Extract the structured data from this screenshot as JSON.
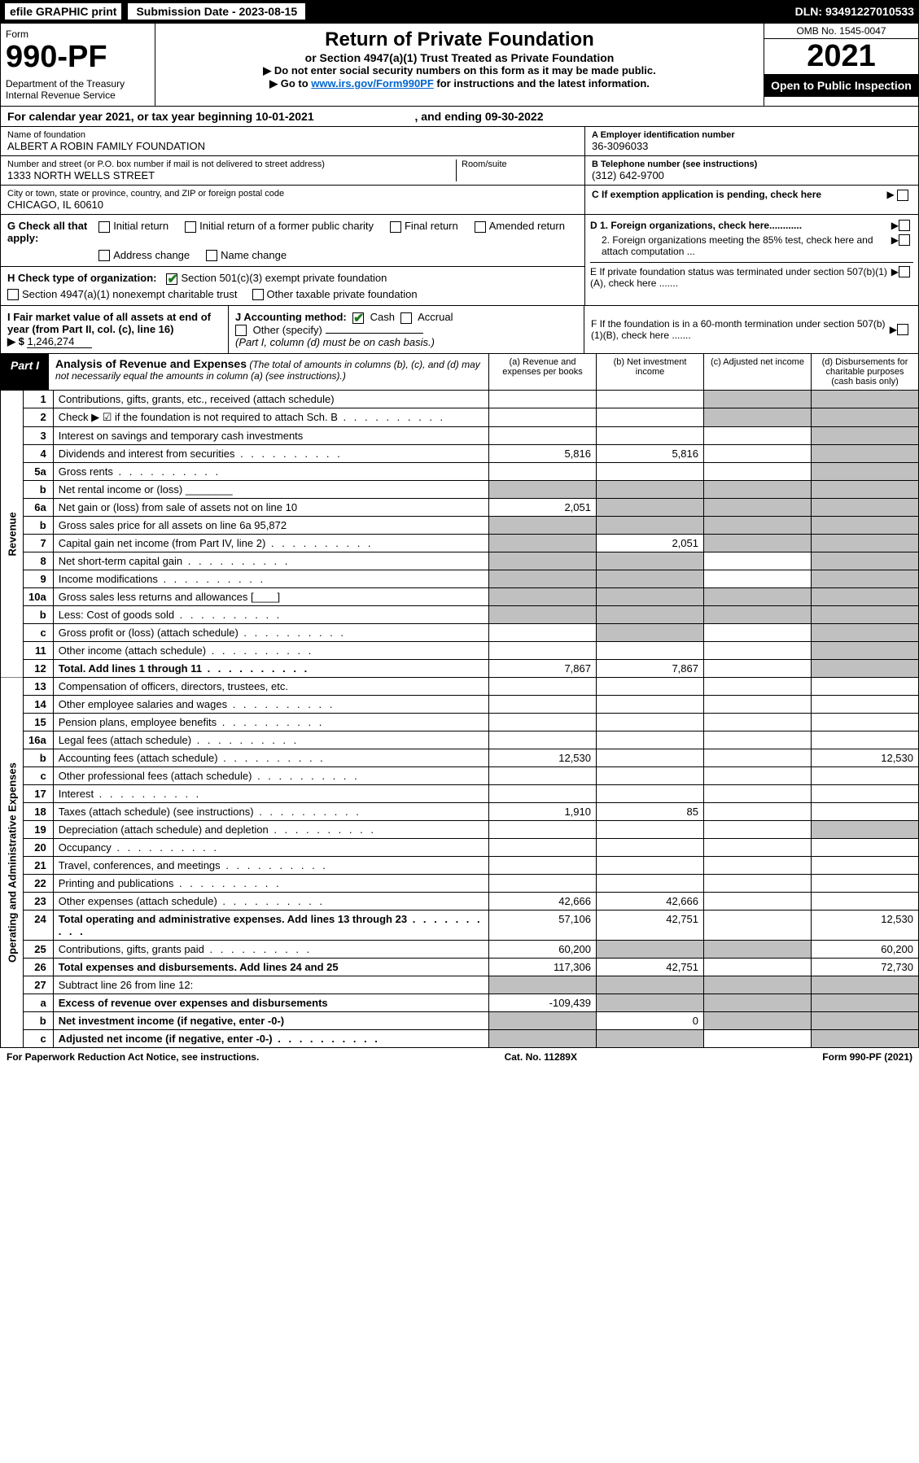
{
  "topbar": {
    "efile": "efile GRAPHIC print",
    "sub_date_label": "Submission Date - 2023-08-15",
    "dln": "DLN: 93491227010533"
  },
  "header": {
    "form_word": "Form",
    "form_no": "990-PF",
    "dept": "Department of the Treasury\nInternal Revenue Service",
    "title": "Return of Private Foundation",
    "subtitle": "or Section 4947(a)(1) Trust Treated as Private Foundation",
    "note1": "▶ Do not enter social security numbers on this form as it may be made public.",
    "note2_pre": "▶ Go to ",
    "note2_link": "www.irs.gov/Form990PF",
    "note2_post": " for instructions and the latest information.",
    "omb": "OMB No. 1545-0047",
    "year": "2021",
    "open": "Open to Public Inspection"
  },
  "cal_year": {
    "text_pre": "For calendar year 2021, or tax year beginning ",
    "begin": "10-01-2021",
    "mid": " , and ending ",
    "end": "09-30-2022"
  },
  "foundation": {
    "name_label": "Name of foundation",
    "name": "ALBERT A ROBIN FAMILY FOUNDATION",
    "street_label": "Number and street (or P.O. box number if mail is not delivered to street address)",
    "street": "1333 NORTH WELLS STREET",
    "room_label": "Room/suite",
    "city_label": "City or town, state or province, country, and ZIP or foreign postal code",
    "city": "CHICAGO, IL  60610"
  },
  "right_info": {
    "ein_label": "A Employer identification number",
    "ein": "36-3096033",
    "tel_label": "B Telephone number (see instructions)",
    "tel": "(312) 642-9700",
    "c_label": "C If exemption application is pending, check here",
    "d1_label": "D 1. Foreign organizations, check here............",
    "d2_label": "2. Foreign organizations meeting the 85% test, check here and attach computation ...",
    "e_label": "E  If private foundation status was terminated under section 507(b)(1)(A), check here .......",
    "f_label": "F  If the foundation is in a 60-month termination under section 507(b)(1)(B), check here ......."
  },
  "section_g": {
    "label": "G Check all that apply:",
    "opts": [
      "Initial return",
      "Initial return of a former public charity",
      "Final return",
      "Amended return",
      "Address change",
      "Name change"
    ]
  },
  "section_h": {
    "label": "H Check type of organization:",
    "opt1": "Section 501(c)(3) exempt private foundation",
    "opt2": "Section 4947(a)(1) nonexempt charitable trust",
    "opt3": "Other taxable private foundation"
  },
  "section_i": {
    "label": "I Fair market value of all assets at end of year (from Part II, col. (c), line 16)",
    "arrow": "▶ $",
    "value": "1,246,274"
  },
  "section_j": {
    "label": "J Accounting method:",
    "cash": "Cash",
    "accrual": "Accrual",
    "other": "Other (specify)",
    "note": "(Part I, column (d) must be on cash basis.)"
  },
  "part1": {
    "label": "Part I",
    "title": "Analysis of Revenue and Expenses",
    "note": " (The total of amounts in columns (b), (c), and (d) may not necessarily equal the amounts in column (a) (see instructions).)",
    "col_a": "(a)   Revenue and expenses per books",
    "col_b": "(b)   Net investment income",
    "col_c": "(c)   Adjusted net income",
    "col_d": "(d)   Disbursements for charitable purposes (cash basis only)"
  },
  "side_labels": {
    "rev": "Revenue",
    "exp": "Operating and Administrative Expenses"
  },
  "rows": [
    {
      "ln": "1",
      "desc": "Contributions, gifts, grants, etc., received (attach schedule)",
      "a": "",
      "b": "",
      "c": "s",
      "d": "s"
    },
    {
      "ln": "2",
      "desc": "Check ▶ ☑ if the foundation is not required to attach Sch. B",
      "dots": true,
      "a": "",
      "b": "",
      "c": "s",
      "d": "s",
      "bold_not": true
    },
    {
      "ln": "3",
      "desc": "Interest on savings and temporary cash investments",
      "a": "",
      "b": "",
      "c": "",
      "d": "s"
    },
    {
      "ln": "4",
      "desc": "Dividends and interest from securities",
      "dots": true,
      "a": "5,816",
      "b": "5,816",
      "c": "",
      "d": "s"
    },
    {
      "ln": "5a",
      "desc": "Gross rents",
      "dots": true,
      "a": "",
      "b": "",
      "c": "",
      "d": "s"
    },
    {
      "ln": "b",
      "desc": "Net rental income or (loss) ________",
      "a": "s",
      "b": "s",
      "c": "s",
      "d": "s"
    },
    {
      "ln": "6a",
      "desc": "Net gain or (loss) from sale of assets not on line 10",
      "a": "2,051",
      "b": "s",
      "c": "s",
      "d": "s"
    },
    {
      "ln": "b",
      "desc": "Gross sales price for all assets on line 6a",
      "inline_val": "95,872",
      "a": "s",
      "b": "s",
      "c": "s",
      "d": "s"
    },
    {
      "ln": "7",
      "desc": "Capital gain net income (from Part IV, line 2)",
      "dots": true,
      "a": "s",
      "b": "2,051",
      "c": "s",
      "d": "s"
    },
    {
      "ln": "8",
      "desc": "Net short-term capital gain",
      "dots": true,
      "a": "s",
      "b": "s",
      "c": "",
      "d": "s"
    },
    {
      "ln": "9",
      "desc": "Income modifications",
      "dots": true,
      "a": "s",
      "b": "s",
      "c": "",
      "d": "s"
    },
    {
      "ln": "10a",
      "desc": "Gross sales less returns and allowances   [____]",
      "a": "s",
      "b": "s",
      "c": "s",
      "d": "s"
    },
    {
      "ln": "b",
      "desc": "Less: Cost of goods sold",
      "dots": true,
      "a": "s",
      "b": "s",
      "c": "s",
      "d": "s"
    },
    {
      "ln": "c",
      "desc": "Gross profit or (loss) (attach schedule)",
      "dots": true,
      "a": "",
      "b": "s",
      "c": "",
      "d": "s"
    },
    {
      "ln": "11",
      "desc": "Other income (attach schedule)",
      "dots": true,
      "a": "",
      "b": "",
      "c": "",
      "d": "s"
    },
    {
      "ln": "12",
      "desc": "Total. Add lines 1 through 11",
      "dots": true,
      "bold": true,
      "a": "7,867",
      "b": "7,867",
      "c": "",
      "d": "s"
    },
    {
      "ln": "13",
      "desc": "Compensation of officers, directors, trustees, etc.",
      "a": "",
      "b": "",
      "c": "",
      "d": ""
    },
    {
      "ln": "14",
      "desc": "Other employee salaries and wages",
      "dots": true,
      "a": "",
      "b": "",
      "c": "",
      "d": ""
    },
    {
      "ln": "15",
      "desc": "Pension plans, employee benefits",
      "dots": true,
      "a": "",
      "b": "",
      "c": "",
      "d": ""
    },
    {
      "ln": "16a",
      "desc": "Legal fees (attach schedule)",
      "dots": true,
      "a": "",
      "b": "",
      "c": "",
      "d": ""
    },
    {
      "ln": "b",
      "desc": "Accounting fees (attach schedule)",
      "dots": true,
      "a": "12,530",
      "b": "",
      "c": "",
      "d": "12,530"
    },
    {
      "ln": "c",
      "desc": "Other professional fees (attach schedule)",
      "dots": true,
      "a": "",
      "b": "",
      "c": "",
      "d": ""
    },
    {
      "ln": "17",
      "desc": "Interest",
      "dots": true,
      "a": "",
      "b": "",
      "c": "",
      "d": ""
    },
    {
      "ln": "18",
      "desc": "Taxes (attach schedule) (see instructions)",
      "dots": true,
      "a": "1,910",
      "b": "85",
      "c": "",
      "d": ""
    },
    {
      "ln": "19",
      "desc": "Depreciation (attach schedule) and depletion",
      "dots": true,
      "a": "",
      "b": "",
      "c": "",
      "d": "s"
    },
    {
      "ln": "20",
      "desc": "Occupancy",
      "dots": true,
      "a": "",
      "b": "",
      "c": "",
      "d": ""
    },
    {
      "ln": "21",
      "desc": "Travel, conferences, and meetings",
      "dots": true,
      "a": "",
      "b": "",
      "c": "",
      "d": ""
    },
    {
      "ln": "22",
      "desc": "Printing and publications",
      "dots": true,
      "a": "",
      "b": "",
      "c": "",
      "d": ""
    },
    {
      "ln": "23",
      "desc": "Other expenses (attach schedule)",
      "dots": true,
      "a": "42,666",
      "b": "42,666",
      "c": "",
      "d": ""
    },
    {
      "ln": "24",
      "desc": "Total operating and administrative expenses. Add lines 13 through 23",
      "dots": true,
      "bold": true,
      "a": "57,106",
      "b": "42,751",
      "c": "",
      "d": "12,530"
    },
    {
      "ln": "25",
      "desc": "Contributions, gifts, grants paid",
      "dots": true,
      "a": "60,200",
      "b": "s",
      "c": "s",
      "d": "60,200"
    },
    {
      "ln": "26",
      "desc": "Total expenses and disbursements. Add lines 24 and 25",
      "bold": true,
      "a": "117,306",
      "b": "42,751",
      "c": "",
      "d": "72,730"
    },
    {
      "ln": "27",
      "desc": "Subtract line 26 from line 12:",
      "a": "s",
      "b": "s",
      "c": "s",
      "d": "s"
    },
    {
      "ln": "a",
      "desc": "Excess of revenue over expenses and disbursements",
      "bold": true,
      "a": "-109,439",
      "b": "s",
      "c": "s",
      "d": "s"
    },
    {
      "ln": "b",
      "desc": "Net investment income (if negative, enter -0-)",
      "bold": true,
      "a": "s",
      "b": "0",
      "c": "s",
      "d": "s"
    },
    {
      "ln": "c",
      "desc": "Adjusted net income (if negative, enter -0-)",
      "dots": true,
      "bold": true,
      "a": "s",
      "b": "s",
      "c": "",
      "d": "s"
    }
  ],
  "footer": {
    "left": "For Paperwork Reduction Act Notice, see instructions.",
    "mid": "Cat. No. 11289X",
    "right": "Form 990-PF (2021)"
  }
}
